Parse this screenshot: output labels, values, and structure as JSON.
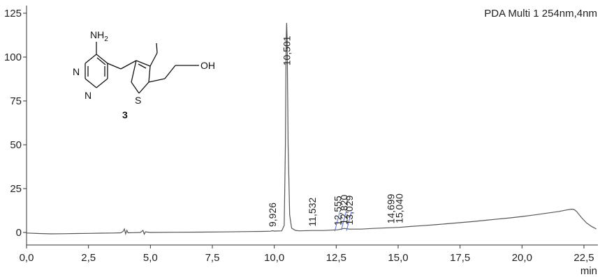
{
  "chart_data": {
    "type": "line",
    "title": "PDA Multi 1 254nm,4nm",
    "xlabel": "min",
    "ylabel": "",
    "xlim": [
      0,
      23.0
    ],
    "ylim": [
      -7,
      126
    ],
    "x_ticks": [
      0,
      2.5,
      5,
      7.5,
      10,
      12.5,
      15,
      17.5,
      20,
      22.5
    ],
    "x_tick_labels": [
      "0,0",
      "2,5",
      "5,0",
      "7,5",
      "10,0",
      "12,5",
      "15,0",
      "17,5",
      "20,0",
      "22,5"
    ],
    "y_ticks": [
      0,
      25,
      50,
      75,
      100,
      125
    ],
    "y_tick_labels": [
      "0",
      "25",
      "50",
      "75",
      "100",
      "125"
    ],
    "grid": false,
    "line_color": "#555555",
    "peaks": [
      {
        "label": "9,926",
        "x": 9.926,
        "y": 0.8,
        "color": "#555555"
      },
      {
        "label": "10,501",
        "x": 10.501,
        "y": 119.5,
        "color": "#555555"
      },
      {
        "label": "11,532",
        "x": 11.532,
        "y": 1.0,
        "color": "#555555"
      },
      {
        "label": "12,555",
        "x": 12.555,
        "y": 1.5,
        "color": "#5b6bd6"
      },
      {
        "label": "12,820",
        "x": 12.82,
        "y": 2.2,
        "color": "#5b6bd6"
      },
      {
        "label": "13,029",
        "x": 13.029,
        "y": 1.8,
        "color": "#5b6bd6"
      },
      {
        "label": "14,699",
        "x": 14.699,
        "y": 2.6,
        "color": "#555555"
      },
      {
        "label": "15,040",
        "x": 15.04,
        "y": 2.8,
        "color": "#555555"
      }
    ],
    "trace": [
      [
        0.0,
        -0.3
      ],
      [
        0.5,
        -0.6
      ],
      [
        1.0,
        -0.8
      ],
      [
        1.5,
        -0.7
      ],
      [
        2.0,
        -0.6
      ],
      [
        2.5,
        -0.5
      ],
      [
        3.0,
        -0.4
      ],
      [
        3.5,
        -0.3
      ],
      [
        3.8,
        -0.2
      ],
      [
        3.9,
        0.6
      ],
      [
        3.95,
        2.0
      ],
      [
        4.0,
        -0.8
      ],
      [
        4.05,
        1.2
      ],
      [
        4.1,
        -0.2
      ],
      [
        4.3,
        -0.1
      ],
      [
        4.6,
        0.0
      ],
      [
        4.7,
        1.2
      ],
      [
        4.75,
        -1.0
      ],
      [
        4.8,
        0.3
      ],
      [
        5.0,
        0.0
      ],
      [
        6.0,
        0.1
      ],
      [
        7.0,
        0.2
      ],
      [
        8.0,
        0.3
      ],
      [
        9.0,
        0.5
      ],
      [
        9.5,
        0.6
      ],
      [
        9.85,
        0.7
      ],
      [
        9.926,
        1.0
      ],
      [
        10.0,
        0.8
      ],
      [
        10.3,
        0.9
      ],
      [
        10.4,
        4.0
      ],
      [
        10.45,
        50.0
      ],
      [
        10.48,
        110.0
      ],
      [
        10.501,
        119.5
      ],
      [
        10.52,
        110.0
      ],
      [
        10.56,
        50.0
      ],
      [
        10.62,
        10.0
      ],
      [
        10.7,
        2.5
      ],
      [
        10.85,
        1.2
      ],
      [
        11.0,
        0.9
      ],
      [
        11.532,
        1.1
      ],
      [
        12.0,
        1.1
      ],
      [
        12.555,
        1.5
      ],
      [
        12.7,
        1.9
      ],
      [
        12.82,
        2.3
      ],
      [
        13.029,
        1.9
      ],
      [
        13.5,
        1.9
      ],
      [
        14.0,
        2.3
      ],
      [
        14.699,
        2.7
      ],
      [
        15.04,
        2.9
      ],
      [
        15.5,
        3.4
      ],
      [
        16.0,
        3.9
      ],
      [
        16.5,
        4.4
      ],
      [
        17.0,
        5.0
      ],
      [
        17.5,
        5.6
      ],
      [
        18.0,
        6.2
      ],
      [
        18.5,
        6.9
      ],
      [
        19.0,
        7.6
      ],
      [
        19.5,
        8.3
      ],
      [
        20.0,
        9.1
      ],
      [
        20.5,
        10.0
      ],
      [
        21.0,
        11.0
      ],
      [
        21.5,
        12.0
      ],
      [
        21.8,
        12.8
      ],
      [
        22.0,
        13.3
      ],
      [
        22.1,
        13.1
      ],
      [
        22.2,
        12.0
      ],
      [
        22.4,
        8.5
      ],
      [
        22.6,
        5.5
      ],
      [
        22.8,
        3.5
      ],
      [
        23.0,
        2.0
      ]
    ]
  },
  "structure": {
    "amine_label": "NH",
    "amine_sub": "2",
    "hydroxyl_label": "OH",
    "ring_n1": "N",
    "ring_n2": "N",
    "sulfur": "S",
    "compound_number": "3"
  }
}
